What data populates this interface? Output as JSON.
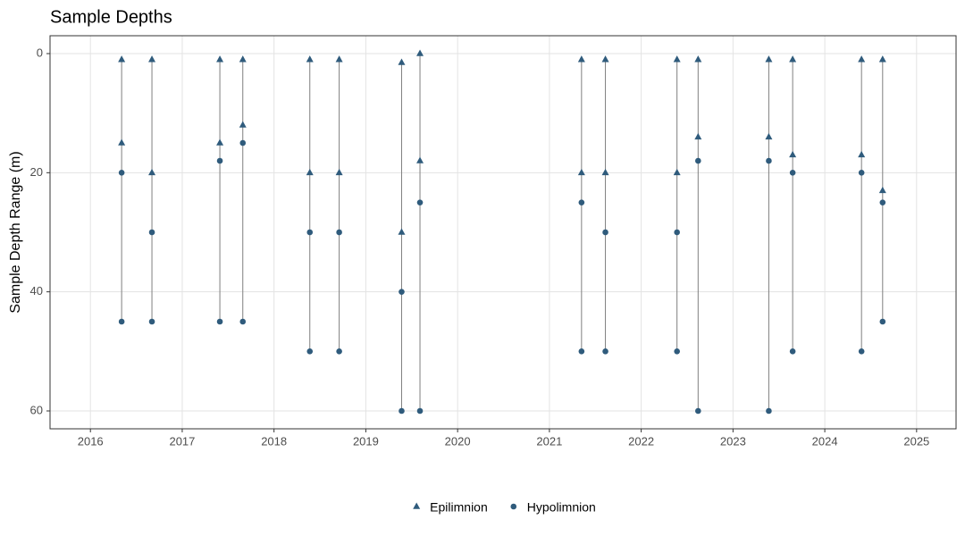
{
  "chart_data": {
    "type": "scatter",
    "title": "Sample Depths",
    "y_label": "Sample Depth Range (m)",
    "xlim": [
      2015.56,
      2025.43
    ],
    "xticks": [
      2016,
      2017,
      2018,
      2019,
      2020,
      2021,
      2022,
      2023,
      2024,
      2025
    ],
    "ylim": [
      -3,
      63
    ],
    "y_reversed": true,
    "yticks": [
      0,
      20,
      40,
      60
    ],
    "grid": true,
    "legend": "bottom",
    "connect_by_x": true,
    "connector_color": "#7f7f7f",
    "series": [
      {
        "name": "Epilimnion",
        "color": "#2f5b7c",
        "marker": "triangle",
        "x": [
          2016.34,
          2016.34,
          2016.67,
          2016.67,
          2017.41,
          2017.41,
          2017.66,
          2017.66,
          2018.39,
          2018.39,
          2018.71,
          2018.71,
          2019.39,
          2019.39,
          2019.59,
          2019.59,
          2021.35,
          2021.35,
          2021.61,
          2021.61,
          2022.39,
          2022.39,
          2022.62,
          2022.62,
          2023.39,
          2023.39,
          2023.65,
          2023.65,
          2024.4,
          2024.4,
          2024.63,
          2024.63
        ],
        "values": [
          1,
          15,
          1,
          20,
          1,
          15,
          1,
          12,
          1,
          20,
          1,
          20,
          1.5,
          30,
          0,
          18,
          1,
          20,
          1,
          20,
          1,
          20,
          1,
          14,
          1,
          14,
          1,
          17,
          1,
          17,
          1,
          23
        ]
      },
      {
        "name": "Hypolimnion",
        "color": "#2f5b7c",
        "marker": "circle",
        "x": [
          2016.34,
          2016.34,
          2016.67,
          2016.67,
          2017.41,
          2017.41,
          2017.66,
          2017.66,
          2018.39,
          2018.39,
          2018.71,
          2018.71,
          2019.39,
          2019.39,
          2019.59,
          2019.59,
          2021.35,
          2021.35,
          2021.61,
          2021.61,
          2022.39,
          2022.39,
          2022.62,
          2022.62,
          2023.39,
          2023.39,
          2023.65,
          2023.65,
          2024.4,
          2024.4,
          2024.63,
          2024.63
        ],
        "values": [
          20,
          45,
          30,
          45,
          18,
          45,
          15,
          45,
          30,
          50,
          30,
          50,
          40,
          60,
          25,
          60,
          25,
          50,
          30,
          50,
          30,
          50,
          18,
          60,
          18,
          60,
          20,
          50,
          20,
          50,
          25,
          45
        ]
      }
    ]
  }
}
